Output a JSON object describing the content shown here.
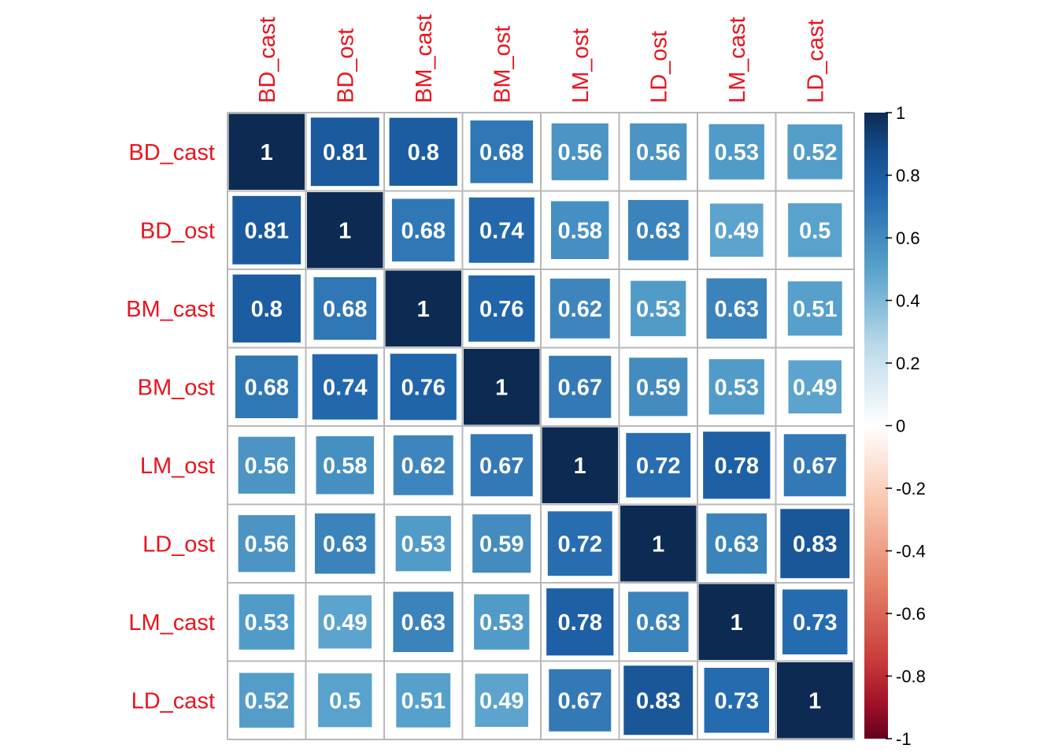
{
  "chart_data": {
    "type": "heatmap",
    "variables": [
      "BD_cast",
      "BD_ost",
      "BM_cast",
      "BM_ost",
      "LM_ost",
      "LD_ost",
      "LM_cast",
      "LD_cast"
    ],
    "matrix": [
      [
        1,
        0.81,
        0.8,
        0.68,
        0.56,
        0.56,
        0.53,
        0.52
      ],
      [
        0.81,
        1,
        0.68,
        0.74,
        0.58,
        0.63,
        0.49,
        0.5
      ],
      [
        0.8,
        0.68,
        1,
        0.76,
        0.62,
        0.53,
        0.63,
        0.51
      ],
      [
        0.68,
        0.74,
        0.76,
        1,
        0.67,
        0.59,
        0.53,
        0.49
      ],
      [
        0.56,
        0.58,
        0.62,
        0.67,
        1,
        0.72,
        0.78,
        0.67
      ],
      [
        0.56,
        0.63,
        0.53,
        0.59,
        0.72,
        1,
        0.63,
        0.83
      ],
      [
        0.53,
        0.49,
        0.63,
        0.53,
        0.78,
        0.63,
        1,
        0.73
      ],
      [
        0.52,
        0.5,
        0.51,
        0.49,
        0.67,
        0.83,
        0.73,
        1
      ]
    ],
    "value_labels": [
      [
        "1",
        "0.81",
        "0.8",
        "0.68",
        "0.56",
        "0.56",
        "0.53",
        "0.52"
      ],
      [
        "0.81",
        "1",
        "0.68",
        "0.74",
        "0.58",
        "0.63",
        "0.49",
        "0.5"
      ],
      [
        "0.8",
        "0.68",
        "1",
        "0.76",
        "0.62",
        "0.53",
        "0.63",
        "0.51"
      ],
      [
        "0.68",
        "0.74",
        "0.76",
        "1",
        "0.67",
        "0.59",
        "0.53",
        "0.49"
      ],
      [
        "0.56",
        "0.58",
        "0.62",
        "0.67",
        "1",
        "0.72",
        "0.78",
        "0.67"
      ],
      [
        "0.56",
        "0.63",
        "0.53",
        "0.59",
        "0.72",
        "1",
        "0.63",
        "0.83"
      ],
      [
        "0.53",
        "0.49",
        "0.63",
        "0.53",
        "0.78",
        "0.63",
        "1",
        "0.73"
      ],
      [
        "0.52",
        "0.5",
        "0.51",
        "0.49",
        "0.67",
        "0.83",
        "0.73",
        "1"
      ]
    ],
    "color_range": [
      -1,
      1
    ],
    "colorbar_ticks": [
      {
        "value": 1,
        "label": "1"
      },
      {
        "value": 0.8,
        "label": "0.8"
      },
      {
        "value": 0.6,
        "label": "0.6"
      },
      {
        "value": 0.4,
        "label": "0.4"
      },
      {
        "value": 0.2,
        "label": "0.2"
      },
      {
        "value": 0,
        "label": "0"
      },
      {
        "value": -0.2,
        "label": "-0.2"
      },
      {
        "value": -0.4,
        "label": "-0.4"
      },
      {
        "value": -0.6,
        "label": "-0.6"
      },
      {
        "value": -0.8,
        "label": "-0.8"
      },
      {
        "value": -1,
        "label": "-1"
      }
    ],
    "colorscale": [
      {
        "value": -1,
        "color": "#67001f"
      },
      {
        "value": -0.875,
        "color": "#a51429"
      },
      {
        "value": -0.75,
        "color": "#c93b3b"
      },
      {
        "value": -0.5,
        "color": "#e58368"
      },
      {
        "value": -0.25,
        "color": "#f8c5ad"
      },
      {
        "value": 0,
        "color": "#ffffff"
      },
      {
        "value": 0.25,
        "color": "#bcdaea"
      },
      {
        "value": 0.5,
        "color": "#58a2cc"
      },
      {
        "value": 0.75,
        "color": "#2166ac"
      },
      {
        "value": 0.875,
        "color": "#144e8d"
      },
      {
        "value": 1,
        "color": "#0d2b52"
      }
    ],
    "label_color": "#e8141e",
    "value_text_color": "#ffffff",
    "grid_color": "#b8b8b8",
    "legend": "right"
  }
}
